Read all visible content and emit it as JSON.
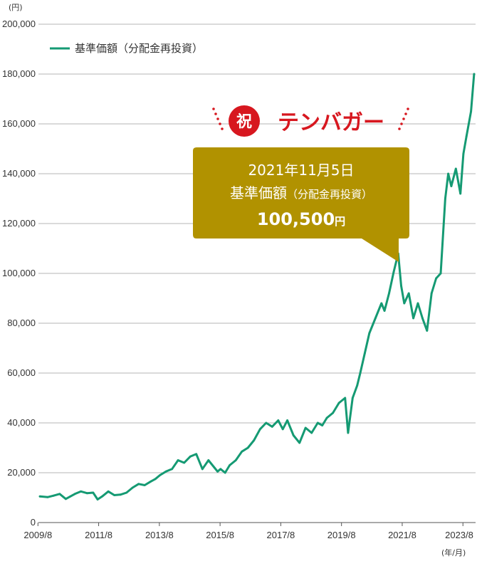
{
  "chart_data": {
    "type": "line",
    "unit_label": "(円)",
    "x_unit_label": "(年/月)",
    "x_tick_labels": [
      "2009/8",
      "2011/8",
      "2013/8",
      "2015/8",
      "2017/8",
      "2019/8",
      "2021/8",
      "2023/8"
    ],
    "y_tick_labels": [
      "0",
      "20,000",
      "40,000",
      "60,000",
      "80,000",
      "100,000",
      "120,000",
      "140,000",
      "160,000",
      "180,000",
      "200,000"
    ],
    "ylim": [
      0,
      200000
    ],
    "xlim": [
      2009.6,
      2024.0
    ],
    "grid": true,
    "legend_position": "top-left",
    "series": [
      {
        "name": "基準価額（分配金再投資）",
        "color": "#159a73",
        "x": [
          2009.65,
          2009.9,
          2010.1,
          2010.3,
          2010.5,
          2010.65,
          2010.8,
          2011.0,
          2011.2,
          2011.4,
          2011.55,
          2011.7,
          2011.9,
          2012.1,
          2012.3,
          2012.5,
          2012.7,
          2012.9,
          2013.1,
          2013.3,
          2013.45,
          2013.6,
          2013.8,
          2014.0,
          2014.2,
          2014.4,
          2014.6,
          2014.8,
          2015.0,
          2015.2,
          2015.4,
          2015.5,
          2015.6,
          2015.75,
          2015.9,
          2016.1,
          2016.3,
          2016.5,
          2016.7,
          2016.9,
          2017.1,
          2017.3,
          2017.5,
          2017.65,
          2017.8,
          2018.0,
          2018.2,
          2018.4,
          2018.6,
          2018.8,
          2018.95,
          2019.1,
          2019.3,
          2019.5,
          2019.7,
          2019.8,
          2019.95,
          2020.1,
          2020.2,
          2020.35,
          2020.5,
          2020.7,
          2020.9,
          2021.0,
          2021.15,
          2021.3,
          2021.45,
          2021.55,
          2021.65,
          2021.8,
          2021.95,
          2022.1,
          2022.25,
          2022.4,
          2022.55,
          2022.7,
          2022.85,
          2023.0,
          2023.1,
          2023.2,
          2023.35,
          2023.5,
          2023.6,
          2023.7,
          2023.85,
          2023.95
        ],
        "values": [
          10500,
          10200,
          10800,
          11500,
          9500,
          10500,
          11500,
          12500,
          11800,
          12000,
          9300,
          10500,
          12500,
          11000,
          11200,
          12000,
          14000,
          15500,
          15000,
          16500,
          17500,
          19000,
          20500,
          21500,
          25000,
          24000,
          26500,
          27500,
          21500,
          25000,
          22000,
          20500,
          21500,
          20000,
          23000,
          25000,
          28500,
          30000,
          33000,
          37500,
          40000,
          38500,
          41000,
          37500,
          41000,
          35000,
          32000,
          38000,
          36000,
          40000,
          39000,
          42000,
          44000,
          48000,
          50000,
          36000,
          50000,
          55000,
          60000,
          68000,
          76000,
          82000,
          88000,
          85000,
          92000,
          100500,
          108000,
          95000,
          88000,
          92000,
          82000,
          88000,
          82000,
          77000,
          92000,
          98000,
          100000,
          130000,
          140000,
          135000,
          142000,
          132000,
          148000,
          155000,
          165000,
          180000
        ]
      }
    ],
    "banner": {
      "badge": "祝",
      "text": "テンバガー"
    },
    "callout": {
      "date": "2021年11月5日",
      "label": "基準価額",
      "label_suffix": "（分配金再投資）",
      "value": "100,500",
      "unit": "円",
      "color": "#b19200"
    }
  }
}
